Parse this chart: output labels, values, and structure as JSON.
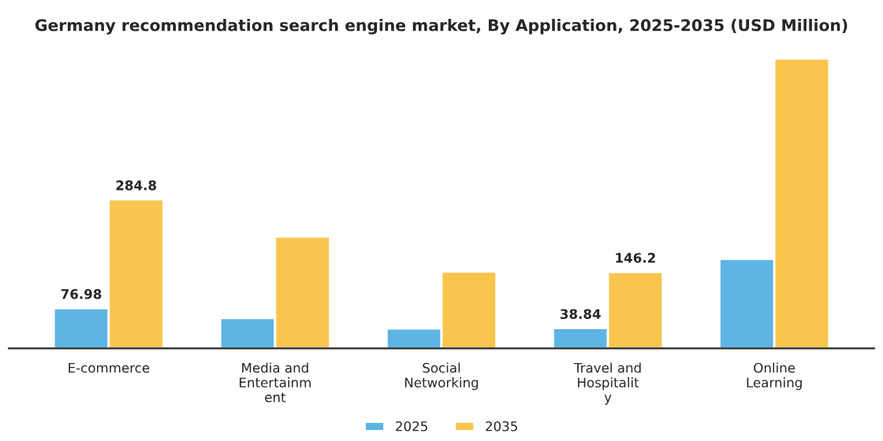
{
  "chart_data": {
    "type": "bar",
    "title": "Germany recommendation search engine market, By Application, 2025-2035 (USD Million)",
    "categories": [
      "E-commerce",
      "Media and\nEntertainm\nent",
      "Social\nNetworking",
      "Travel and\nHospitalit\ny",
      "Online\nLearning"
    ],
    "series": [
      {
        "name": "2025",
        "color": "#5db4e5",
        "values": [
          76.98,
          58,
          38,
          38.84,
          171
        ],
        "value_labels": [
          "76.98",
          null,
          null,
          "38.84",
          null
        ]
      },
      {
        "name": "2035",
        "color": "#f9c54e",
        "values": [
          284.8,
          214,
          147,
          146.2,
          554
        ],
        "value_labels": [
          "284.8",
          null,
          null,
          "146.2",
          null
        ]
      }
    ],
    "tick_labels": "x",
    "legend": "bottom"
  }
}
